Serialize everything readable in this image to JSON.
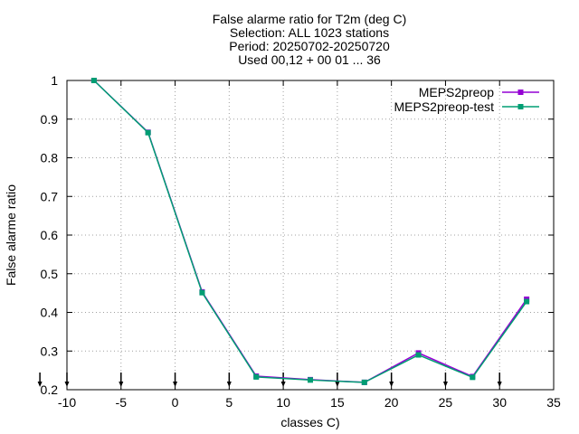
{
  "chart_data": {
    "type": "line",
    "title_lines": [
      "False alarme ratio  for T2m (deg C)",
      "Selection: ALL   1023 stations",
      "Period: 20250702-20250720",
      "Used 00,12 + 00 01 ... 36"
    ],
    "xlabel": "classes C)",
    "ylabel": "False alarme ratio",
    "xlim": [
      -10,
      35
    ],
    "ylim": [
      0.2,
      1
    ],
    "xticks": [
      -10,
      -5,
      0,
      5,
      10,
      15,
      20,
      25,
      30,
      35
    ],
    "xtick_labels": [
      "-10",
      "-5",
      "0",
      "5",
      "10",
      "15",
      "20",
      "25",
      "30",
      "35"
    ],
    "yticks": [
      0.2,
      0.3,
      0.4,
      0.5,
      0.6,
      0.7,
      0.8,
      0.9,
      1
    ],
    "ytick_labels": [
      "0.2",
      "0.3",
      "0.4",
      "0.5",
      "0.6",
      "0.7",
      "0.8",
      "0.9",
      "1"
    ],
    "grid": true,
    "legend_position": "top-right",
    "series": [
      {
        "name": "MEPS2preop",
        "color": "#9400d3",
        "x": [
          -7.5,
          -2.5,
          2.5,
          7.5,
          12.5,
          17.5,
          22.5,
          27.5,
          32.5
        ],
        "y": [
          1.0,
          0.866,
          0.453,
          0.235,
          0.226,
          0.219,
          0.295,
          0.234,
          0.434
        ]
      },
      {
        "name": "MEPS2preop-test",
        "color": "#009e73",
        "x": [
          -7.5,
          -2.5,
          2.5,
          7.5,
          12.5,
          17.5,
          22.5,
          27.5,
          32.5
        ],
        "y": [
          1.0,
          0.865,
          0.451,
          0.233,
          0.225,
          0.219,
          0.29,
          0.232,
          0.428
        ]
      }
    ],
    "bottom_arrows_x": [
      -12.5,
      -10,
      -5,
      0,
      5,
      10,
      15,
      20,
      25,
      30
    ]
  }
}
